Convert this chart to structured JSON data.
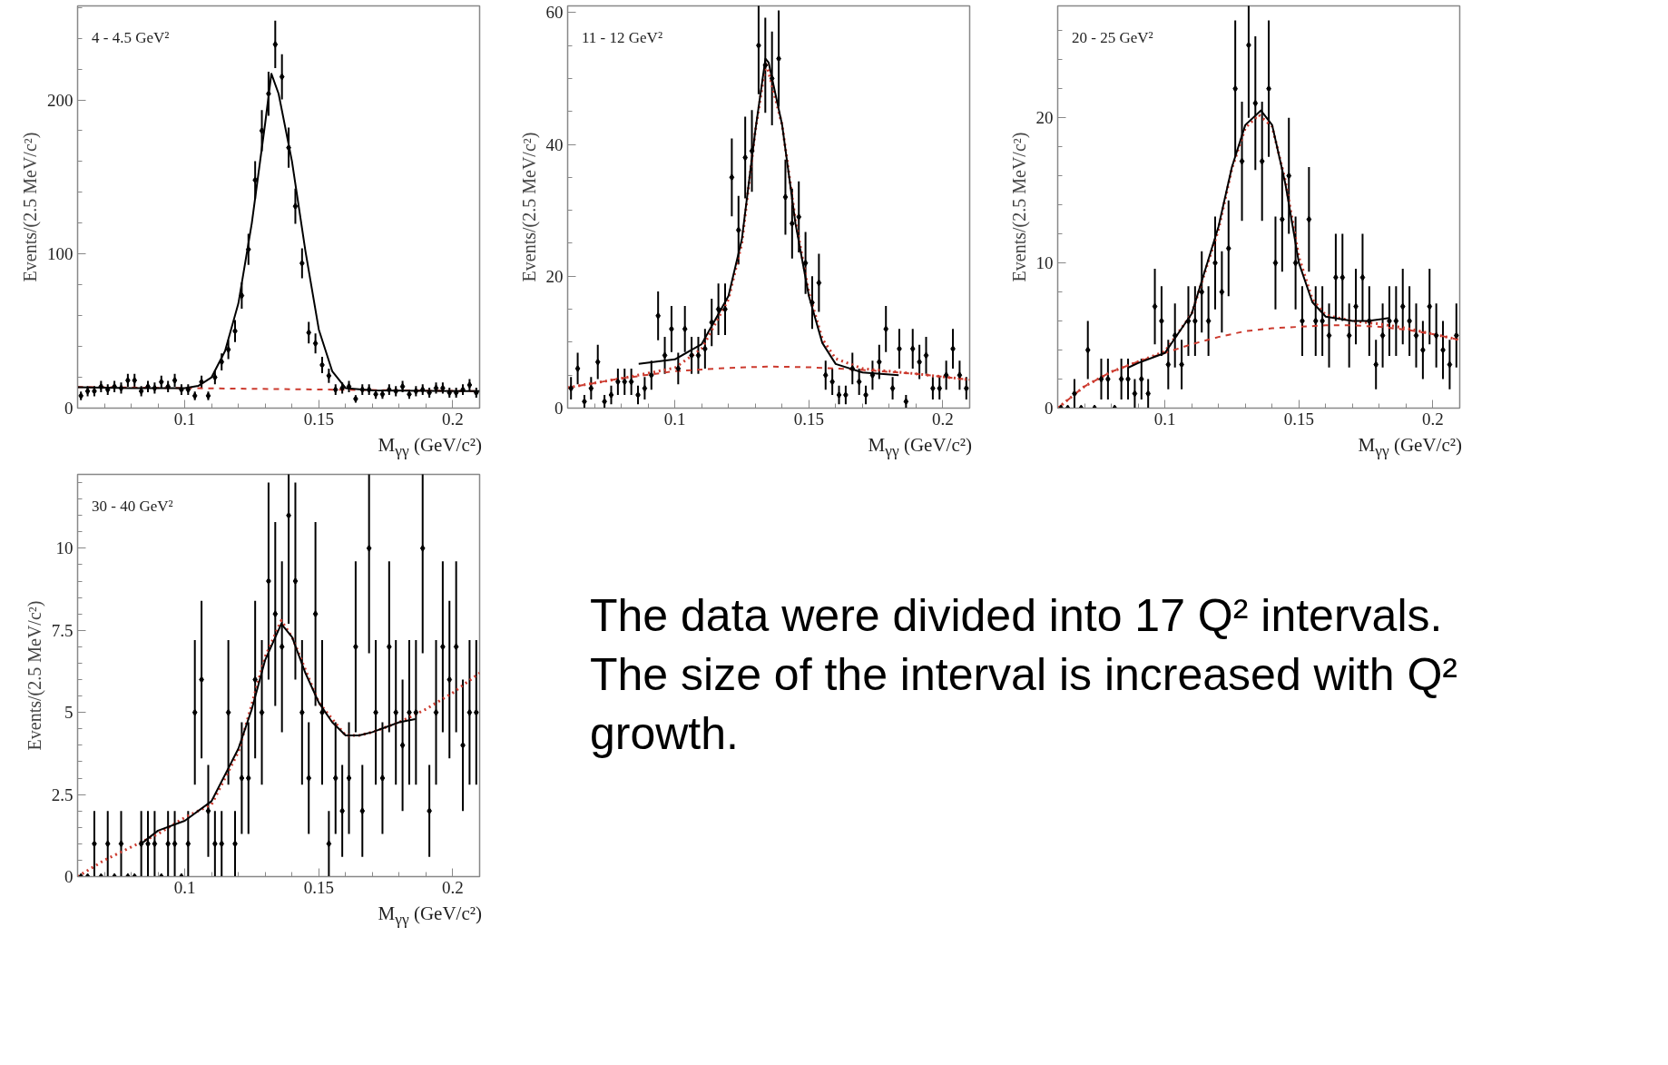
{
  "chart_data": [
    {
      "type": "scatter",
      "xlabel": "M$_{γγ}$ (GeV/c²)",
      "ylabel": "Events/(2.5 MeV/c²)",
      "annotations": [
        "4 - 4.5 GeV²"
      ],
      "xlim": [
        0.06,
        0.21
      ],
      "xticks": [
        {
          "value": 0.06,
          "label": null
        },
        {
          "value": 0.07,
          "label": null
        },
        {
          "value": 0.08,
          "label": null
        },
        {
          "value": 0.09,
          "label": null
        },
        0.1,
        {
          "value": 0.11,
          "label": null
        },
        {
          "value": 0.12,
          "label": null
        },
        {
          "value": 0.13,
          "label": null
        },
        {
          "value": 0.14,
          "label": null
        },
        0.15,
        {
          "value": 0.16,
          "label": null
        },
        {
          "value": 0.17,
          "label": null
        },
        {
          "value": 0.18,
          "label": null
        },
        {
          "value": 0.19,
          "label": null
        },
        0.2,
        {
          "value": 0.21,
          "label": null
        }
      ],
      "ylim": [
        0,
        261
      ],
      "yticks": [
        0,
        {
          "value": 20,
          "label": null
        },
        {
          "value": 40,
          "label": null
        },
        {
          "value": 60,
          "label": null
        },
        {
          "value": 80,
          "label": null
        },
        100,
        {
          "value": 120,
          "label": null
        },
        {
          "value": 140,
          "label": null
        },
        {
          "value": 160,
          "label": null
        },
        {
          "value": 180,
          "label": null
        },
        200,
        {
          "value": 220,
          "label": null
        },
        {
          "value": 240,
          "label": null
        },
        {
          "value": 260,
          "label": null
        }
      ],
      "x": [
        0.06125,
        0.06375,
        0.06625,
        0.06875,
        0.07125,
        0.07375,
        0.07625,
        0.07875,
        0.08125,
        0.08375,
        0.08625,
        0.08875,
        0.09125,
        0.09375,
        0.09625,
        0.09875,
        0.10125,
        0.10375,
        0.10625,
        0.10875,
        0.11125,
        0.11375,
        0.11625,
        0.11875,
        0.12125,
        0.12375,
        0.12625,
        0.12875,
        0.13125,
        0.13375,
        0.13625,
        0.13875,
        0.14125,
        0.14375,
        0.14625,
        0.14875,
        0.15125,
        0.15375,
        0.15625,
        0.15875,
        0.16125,
        0.16375,
        0.16625,
        0.16875,
        0.17125,
        0.17375,
        0.17625,
        0.17875,
        0.18125,
        0.18375,
        0.18625,
        0.18875,
        0.19125,
        0.19375,
        0.19625,
        0.19875,
        0.20125,
        0.20375,
        0.20625,
        0.20875
      ],
      "series": [
        {
          "type": "line",
          "line_style": "dashed",
          "color": "#cc3a2e",
          "x": [
            0.06,
            0.21
          ],
          "values": [
            13.7,
            11
          ]
        },
        {
          "type": "line",
          "line_style": "solid",
          "color": "#000000",
          "x": [
            0.06,
            0.08,
            0.1,
            0.105,
            0.11,
            0.115,
            0.12,
            0.125,
            0.13,
            0.1323,
            0.135,
            0.14,
            0.145,
            0.15,
            0.155,
            0.16,
            0.17,
            0.19,
            0.21
          ],
          "values": [
            13.5,
            13,
            13,
            14.4,
            20,
            37,
            68,
            120,
            185,
            217,
            204,
            160,
            102,
            51,
            24,
            13,
            11.5,
            11.2,
            11
          ]
        },
        {
          "type": "scatter",
          "marker": "diamond",
          "color": "#000000",
          "values": [
            8,
            11,
            11,
            14,
            12,
            14,
            13,
            18,
            18,
            11,
            14,
            13,
            17,
            14,
            18,
            12,
            12,
            8,
            17,
            8,
            20,
            30,
            38,
            50,
            73,
            103,
            148,
            180,
            204,
            236,
            215,
            169,
            131,
            94,
            49,
            42,
            28,
            21,
            12,
            13,
            14,
            6,
            12,
            12,
            9,
            9,
            12,
            11,
            14,
            9,
            11,
            12,
            10,
            13,
            13,
            10,
            10,
            12,
            15,
            10
          ],
          "errors": [
            2.8,
            3.3,
            3.3,
            3.7,
            3.5,
            3.7,
            3.6,
            4.2,
            4.2,
            3.3,
            3.7,
            3.6,
            4.1,
            3.7,
            4.2,
            3.5,
            3.5,
            2.8,
            4.1,
            2.8,
            4.5,
            5.5,
            6.2,
            7.1,
            8.5,
            10.1,
            12.2,
            13.4,
            14.3,
            15.4,
            14.7,
            13,
            11.4,
            9.7,
            7,
            6.5,
            5.3,
            4.6,
            3.5,
            3.6,
            3.7,
            2.4,
            3.5,
            3.5,
            3,
            3,
            3.5,
            3.3,
            3.7,
            3,
            3.3,
            3.5,
            3.2,
            3.6,
            3.6,
            3.2,
            3.2,
            3.5,
            3.9,
            3.2
          ]
        }
      ]
    },
    {
      "type": "scatter",
      "xlabel": "M$_{γγ}$ (GeV/c²)",
      "ylabel": "Events/(2.5 MeV/c²)",
      "annotations": [
        "11 - 12 GeV²"
      ],
      "xlim": [
        0.06,
        0.21
      ],
      "xticks": [
        {
          "value": 0.06,
          "label": null
        },
        {
          "value": 0.07,
          "label": null
        },
        {
          "value": 0.08,
          "label": null
        },
        {
          "value": 0.09,
          "label": null
        },
        0.1,
        {
          "value": 0.11,
          "label": null
        },
        {
          "value": 0.12,
          "label": null
        },
        {
          "value": 0.13,
          "label": null
        },
        {
          "value": 0.14,
          "label": null
        },
        0.15,
        {
          "value": 0.16,
          "label": null
        },
        {
          "value": 0.17,
          "label": null
        },
        {
          "value": 0.18,
          "label": null
        },
        {
          "value": 0.19,
          "label": null
        },
        0.2,
        {
          "value": 0.21,
          "label": null
        }
      ],
      "ylim": [
        0,
        61
      ],
      "yticks": [
        0,
        {
          "value": 5,
          "label": null
        },
        {
          "value": 10,
          "label": null
        },
        {
          "value": 15,
          "label": null
        },
        20,
        {
          "value": 25,
          "label": null
        },
        {
          "value": 30,
          "label": null
        },
        {
          "value": 35,
          "label": null
        },
        40,
        {
          "value": 45,
          "label": null
        },
        {
          "value": 50,
          "label": null
        },
        {
          "value": 55,
          "label": null
        },
        60
      ],
      "x": [
        0.06125,
        0.06375,
        0.06625,
        0.06875,
        0.07125,
        0.07375,
        0.07625,
        0.07875,
        0.08125,
        0.08375,
        0.08625,
        0.08875,
        0.09125,
        0.09375,
        0.09625,
        0.09875,
        0.10125,
        0.10375,
        0.10625,
        0.10875,
        0.11125,
        0.11375,
        0.11625,
        0.11875,
        0.12125,
        0.12375,
        0.12625,
        0.12875,
        0.13125,
        0.13375,
        0.13625,
        0.13875,
        0.14125,
        0.14375,
        0.14625,
        0.14875,
        0.15125,
        0.15375,
        0.15625,
        0.15875,
        0.16125,
        0.16375,
        0.16625,
        0.16875,
        0.17125,
        0.17375,
        0.17625,
        0.17875,
        0.18125,
        0.18375,
        0.18625,
        0.18875,
        0.19125,
        0.19375,
        0.19625,
        0.19875,
        0.20125,
        0.20375,
        0.20625,
        0.20875
      ],
      "series": [
        {
          "type": "line",
          "line_style": "dashed",
          "color": "#cc3a2e",
          "x": [
            0.06,
            0.08,
            0.1,
            0.12,
            0.135,
            0.15,
            0.17,
            0.19,
            0.21
          ],
          "values": [
            3.1,
            4.5,
            5.6,
            6.1,
            6.3,
            6.2,
            5.8,
            5.2,
            4.3
          ]
        },
        {
          "type": "line",
          "line_style": "dotted",
          "color": "#cc3a2e",
          "x": [
            0.06,
            0.08,
            0.1,
            0.11,
            0.12,
            0.125,
            0.13,
            0.134,
            0.14,
            0.145,
            0.15,
            0.155,
            0.16,
            0.17,
            0.19,
            0.21
          ],
          "values": [
            3.1,
            4.5,
            6.1,
            9,
            16.5,
            25,
            42,
            52.5,
            43,
            28.5,
            17.5,
            10.5,
            7.5,
            6,
            5.2,
            4.3
          ]
        },
        {
          "type": "line",
          "line_style": "solid",
          "color": "#000000",
          "x": [
            0.0865,
            0.1,
            0.11,
            0.12,
            0.125,
            0.13,
            0.1338,
            0.135,
            0.14,
            0.145,
            0.15,
            0.155,
            0.16,
            0.17,
            0.1835
          ],
          "values": [
            6.7,
            7.4,
            9.7,
            17,
            25.6,
            42,
            53,
            52.4,
            43,
            28,
            17,
            9.9,
            6.7,
            5.4,
            5
          ]
        },
        {
          "type": "scatter",
          "marker": "diamond",
          "color": "#000000",
          "values": [
            3,
            6,
            1,
            3,
            7,
            1,
            2,
            4,
            4,
            4,
            2,
            3,
            5,
            14,
            8,
            12,
            6,
            12,
            8,
            8,
            9,
            13,
            15,
            15,
            35,
            27,
            38,
            39,
            55,
            52,
            50,
            53,
            32,
            28,
            29,
            22,
            16,
            19,
            5,
            4,
            2,
            2,
            6,
            4,
            2,
            5,
            7,
            12,
            3,
            9,
            1,
            9,
            7,
            8,
            3,
            3,
            5,
            9,
            5,
            3
          ],
          "errors": [
            1.7,
            2.4,
            1,
            1.7,
            2.6,
            1,
            1.4,
            2,
            2,
            2,
            1.4,
            1.7,
            2.2,
            3.7,
            2.8,
            3.5,
            2.4,
            3.5,
            2.8,
            2.8,
            3,
            3.6,
            3.9,
            3.9,
            5.9,
            5.2,
            6.2,
            6.2,
            7.4,
            7.2,
            7.1,
            7.3,
            5.7,
            5.3,
            5.4,
            4.7,
            4,
            4.4,
            2.2,
            2,
            1.4,
            1.4,
            2.4,
            2,
            1.4,
            2.2,
            2.6,
            3.5,
            1.7,
            3,
            1,
            3,
            2.6,
            2.8,
            1.7,
            1.7,
            2.2,
            3,
            2.2,
            1.7
          ]
        }
      ]
    },
    {
      "type": "scatter",
      "xlabel": "M$_{γγ}$ (GeV/c²)",
      "ylabel": "Events/(2.5 MeV/c²)",
      "annotations": [
        "20 - 25 GeV²"
      ],
      "xlim": [
        0.06,
        0.21
      ],
      "xticks": [
        {
          "value": 0.06,
          "label": null
        },
        {
          "value": 0.07,
          "label": null
        },
        {
          "value": 0.08,
          "label": null
        },
        {
          "value": 0.09,
          "label": null
        },
        0.1,
        {
          "value": 0.11,
          "label": null
        },
        {
          "value": 0.12,
          "label": null
        },
        {
          "value": 0.13,
          "label": null
        },
        {
          "value": 0.14,
          "label": null
        },
        0.15,
        {
          "value": 0.16,
          "label": null
        },
        {
          "value": 0.17,
          "label": null
        },
        {
          "value": 0.18,
          "label": null
        },
        {
          "value": 0.19,
          "label": null
        },
        0.2,
        {
          "value": 0.21,
          "label": null
        }
      ],
      "ylim": [
        0,
        27.7
      ],
      "yticks": [
        0,
        {
          "value": 2,
          "label": null
        },
        {
          "value": 4,
          "label": null
        },
        {
          "value": 6,
          "label": null
        },
        {
          "value": 8,
          "label": null
        },
        10,
        {
          "value": 12,
          "label": null
        },
        {
          "value": 14,
          "label": null
        },
        {
          "value": 16,
          "label": null
        },
        {
          "value": 18,
          "label": null
        },
        20,
        {
          "value": 22,
          "label": null
        },
        {
          "value": 24,
          "label": null
        },
        {
          "value": 26,
          "label": null
        }
      ],
      "x": [
        0.06125,
        0.06375,
        0.06625,
        0.06875,
        0.07125,
        0.07375,
        0.07625,
        0.07875,
        0.08125,
        0.08375,
        0.08625,
        0.08875,
        0.09125,
        0.09375,
        0.09625,
        0.09875,
        0.10125,
        0.10375,
        0.10625,
        0.10875,
        0.11125,
        0.11375,
        0.11625,
        0.11875,
        0.12125,
        0.12375,
        0.12625,
        0.12875,
        0.13125,
        0.13375,
        0.13625,
        0.13875,
        0.14125,
        0.14375,
        0.14625,
        0.14875,
        0.15125,
        0.15375,
        0.15625,
        0.15875,
        0.16125,
        0.16375,
        0.16625,
        0.16875,
        0.17125,
        0.17375,
        0.17625,
        0.17875,
        0.18125,
        0.18375,
        0.18625,
        0.18875,
        0.19125,
        0.19375,
        0.19625,
        0.19875,
        0.20125,
        0.20375,
        0.20625,
        0.20875
      ],
      "series": [
        {
          "type": "line",
          "line_style": "dashed",
          "color": "#cc3a2e",
          "x": [
            0.06,
            0.07,
            0.08,
            0.09,
            0.1,
            0.11,
            0.12,
            0.13,
            0.14,
            0.15,
            0.16,
            0.17,
            0.18,
            0.19,
            0.2,
            0.21
          ],
          "values": [
            0,
            1.5,
            2.5,
            3.2,
            3.8,
            4.4,
            4.9,
            5.3,
            5.5,
            5.6,
            5.7,
            5.7,
            5.6,
            5.4,
            5.1,
            4.7
          ]
        },
        {
          "type": "line",
          "line_style": "dotted",
          "color": "#cc3a2e",
          "x": [
            0.06,
            0.07,
            0.08,
            0.09,
            0.1,
            0.11,
            0.12,
            0.125,
            0.13,
            0.135,
            0.14,
            0.145,
            0.15,
            0.155,
            0.16,
            0.17,
            0.18,
            0.19,
            0.2,
            0.21
          ],
          "values": [
            0,
            1.5,
            2.5,
            3.2,
            3.9,
            6.5,
            12.3,
            16.5,
            19.3,
            20.2,
            19.4,
            15.6,
            10.4,
            7.5,
            6.4,
            6,
            5.8,
            5.5,
            5.1,
            4.7
          ]
        },
        {
          "type": "line",
          "line_style": "solid",
          "color": "#000000",
          "x": [
            0.0864,
            0.09,
            0.1,
            0.11,
            0.12,
            0.125,
            0.13,
            0.1358,
            0.14,
            0.145,
            0.15,
            0.155,
            0.16,
            0.17,
            0.1758,
            0.1836
          ],
          "values": [
            2.8,
            3.1,
            3.8,
            6.5,
            12.5,
            16.6,
            19.5,
            20.5,
            19.5,
            15.4,
            10,
            7.3,
            6.3,
            6,
            6,
            6.2
          ]
        },
        {
          "type": "scatter",
          "marker": "diamond",
          "color": "#000000",
          "values": [
            0,
            0,
            1,
            0,
            4,
            0,
            2,
            2,
            0,
            2,
            2,
            1,
            2,
            1,
            7,
            6,
            3,
            5,
            3,
            6,
            6,
            8,
            6,
            10,
            8,
            11,
            22,
            17,
            25,
            21,
            17,
            22,
            10,
            13,
            16,
            10,
            6,
            13,
            6,
            6,
            5,
            9,
            9,
            5,
            7,
            9,
            6,
            3,
            5,
            6,
            6,
            7,
            6,
            5,
            4,
            7,
            5,
            4,
            3,
            5
          ],
          "errors": [
            0,
            0,
            1,
            0,
            2,
            0,
            1.4,
            1.4,
            0,
            1.4,
            1.4,
            1,
            1.4,
            1,
            2.6,
            2.4,
            1.7,
            2.2,
            1.7,
            2.4,
            2.4,
            2.8,
            2.4,
            3.2,
            2.8,
            3.3,
            4.7,
            4.1,
            5,
            4.6,
            4.1,
            4.7,
            3.2,
            3.6,
            4,
            3.2,
            2.4,
            3.6,
            2.4,
            2.4,
            2.2,
            3,
            3,
            2.2,
            2.6,
            3,
            2.4,
            1.7,
            2.2,
            2.4,
            2.4,
            2.6,
            2.4,
            2.2,
            2,
            2.6,
            2.2,
            2,
            1.7,
            2.2
          ]
        }
      ]
    },
    {
      "type": "scatter",
      "xlabel": "M$_{γγ}$ (GeV/c²)",
      "ylabel": "Events/(2.5 MeV/c²)",
      "annotations": [
        "30 - 40 GeV²"
      ],
      "xlim": [
        0.06,
        0.21
      ],
      "xticks": [
        {
          "value": 0.06,
          "label": null
        },
        {
          "value": 0.07,
          "label": null
        },
        {
          "value": 0.08,
          "label": null
        },
        {
          "value": 0.09,
          "label": null
        },
        0.1,
        {
          "value": 0.11,
          "label": null
        },
        {
          "value": 0.12,
          "label": null
        },
        {
          "value": 0.13,
          "label": null
        },
        {
          "value": 0.14,
          "label": null
        },
        0.15,
        {
          "value": 0.16,
          "label": null
        },
        {
          "value": 0.17,
          "label": null
        },
        {
          "value": 0.18,
          "label": null
        },
        {
          "value": 0.19,
          "label": null
        },
        0.2,
        {
          "value": 0.21,
          "label": null
        }
      ],
      "ylim": [
        0,
        12.25
      ],
      "yticks": [
        0,
        {
          "value": 0.5,
          "label": null
        },
        {
          "value": 1,
          "label": null
        },
        {
          "value": 1.5,
          "label": null
        },
        {
          "value": 2,
          "label": null
        },
        2.5,
        {
          "value": 3,
          "label": null
        },
        {
          "value": 3.5,
          "label": null
        },
        {
          "value": 4,
          "label": null
        },
        {
          "value": 4.5,
          "label": null
        },
        5,
        {
          "value": 5.5,
          "label": null
        },
        {
          "value": 6,
          "label": null
        },
        {
          "value": 6.5,
          "label": null
        },
        {
          "value": 7,
          "label": null
        },
        7.5,
        {
          "value": 8,
          "label": null
        },
        {
          "value": 8.5,
          "label": null
        },
        {
          "value": 9,
          "label": null
        },
        {
          "value": 9.5,
          "label": null
        },
        10,
        {
          "value": 10.5,
          "label": null
        },
        {
          "value": 11,
          "label": null
        },
        {
          "value": 11.5,
          "label": null
        },
        {
          "value": 12,
          "label": null
        }
      ],
      "x": [
        0.06125,
        0.06375,
        0.06625,
        0.06875,
        0.07125,
        0.07375,
        0.07625,
        0.07875,
        0.08125,
        0.08375,
        0.08625,
        0.08875,
        0.09125,
        0.09375,
        0.09625,
        0.09875,
        0.10125,
        0.10375,
        0.10625,
        0.10875,
        0.11125,
        0.11375,
        0.11625,
        0.11875,
        0.12125,
        0.12375,
        0.12625,
        0.12875,
        0.13125,
        0.13375,
        0.13625,
        0.13875,
        0.14125,
        0.14375,
        0.14625,
        0.14875,
        0.15125,
        0.15375,
        0.15625,
        0.15875,
        0.16125,
        0.16375,
        0.16625,
        0.16875,
        0.17125,
        0.17375,
        0.17625,
        0.17875,
        0.18125,
        0.18375,
        0.18625,
        0.18875,
        0.19125,
        0.19375,
        0.19625,
        0.19875,
        0.20125,
        0.20375,
        0.20625,
        0.20875
      ],
      "series": [
        {
          "type": "line",
          "line_style": "dotted",
          "color": "#cc3a2e",
          "x": [
            0.06,
            0.07,
            0.08,
            0.09,
            0.1,
            0.11,
            0.12,
            0.13,
            0.136,
            0.14,
            0.15,
            0.16,
            0.165,
            0.17,
            0.18,
            0.19,
            0.2,
            0.21
          ],
          "values": [
            0,
            0.5,
            0.9,
            1.3,
            1.8,
            2.2,
            3.8,
            6.7,
            7.8,
            7.3,
            5.3,
            4.3,
            4.3,
            4.4,
            4.7,
            5.1,
            5.6,
            6.2
          ]
        },
        {
          "type": "line",
          "line_style": "solid",
          "color": "#000000",
          "x": [
            0.0837,
            0.09,
            0.1,
            0.11,
            0.12,
            0.125,
            0.13,
            0.136,
            0.14,
            0.145,
            0.15,
            0.155,
            0.16,
            0.165,
            0.17,
            0.18,
            0.186
          ],
          "values": [
            1,
            1.4,
            1.7,
            2.3,
            3.9,
            5.1,
            6.6,
            7.7,
            7.3,
            6.2,
            5.3,
            4.7,
            4.3,
            4.3,
            4.4,
            4.7,
            4.8
          ]
        },
        {
          "type": "scatter",
          "marker": "diamond",
          "color": "#000000",
          "values": [
            0,
            0,
            1,
            0,
            1,
            0,
            1,
            0,
            0,
            1,
            1,
            1,
            0,
            1,
            1,
            0,
            1,
            5,
            6,
            2,
            1,
            1,
            5,
            1,
            3,
            3,
            6,
            5,
            9,
            8,
            7,
            11,
            9,
            5,
            3,
            8,
            5,
            1,
            3,
            2,
            3,
            7,
            2,
            10,
            5,
            3,
            7,
            5,
            4,
            5,
            5,
            10,
            2,
            5,
            7,
            6,
            7,
            4,
            5,
            5
          ],
          "errors": [
            0,
            0,
            1,
            0,
            1,
            0,
            1,
            0,
            0,
            1,
            1,
            1,
            0,
            1,
            1,
            0,
            1,
            2.2,
            2.4,
            1.4,
            1,
            1,
            2.2,
            1,
            1.7,
            1.7,
            2.4,
            2.2,
            3,
            2.8,
            2.6,
            3.3,
            3,
            2.2,
            1.7,
            2.8,
            2.2,
            1,
            1.7,
            1.4,
            1.7,
            2.6,
            1.4,
            3.2,
            2.2,
            1.7,
            2.6,
            2.2,
            2,
            2.2,
            2.2,
            3.2,
            1.4,
            2.2,
            2.6,
            2.4,
            2.6,
            2,
            2.2,
            2.2
          ]
        }
      ]
    },
    {
      "type": "other",
      "annotations": [
        "The data were divided into 17 Q² intervals. The size of the interval is increased with Q² growth."
      ]
    }
  ]
}
